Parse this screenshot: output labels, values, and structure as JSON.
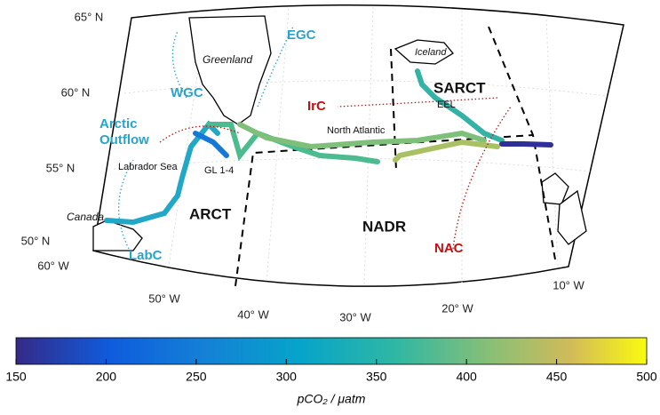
{
  "map": {
    "lat_labels": [
      "65° N",
      "60° N",
      "55° N",
      "50° N"
    ],
    "lon_labels": [
      "60° W",
      "50° W",
      "40° W",
      "30° W",
      "20° W",
      "10° W"
    ],
    "places": [
      "Greenland",
      "Iceland",
      "Canada",
      "Labrador Sea",
      "North Atlantic",
      "GL 1-4",
      "EEL"
    ],
    "provinces": [
      "ARCT",
      "NADR",
      "SARCT"
    ],
    "currents": [
      "EGC",
      "WGC",
      "LabC",
      "IrC",
      "NAC"
    ],
    "arctic_outflow": [
      "Arctic",
      "Outflow"
    ]
  },
  "colorbar": {
    "range": [
      150,
      500
    ],
    "ticks": [
      150,
      200,
      250,
      300,
      350,
      400,
      450,
      500
    ],
    "label": "pCO₂ / μatm"
  }
}
